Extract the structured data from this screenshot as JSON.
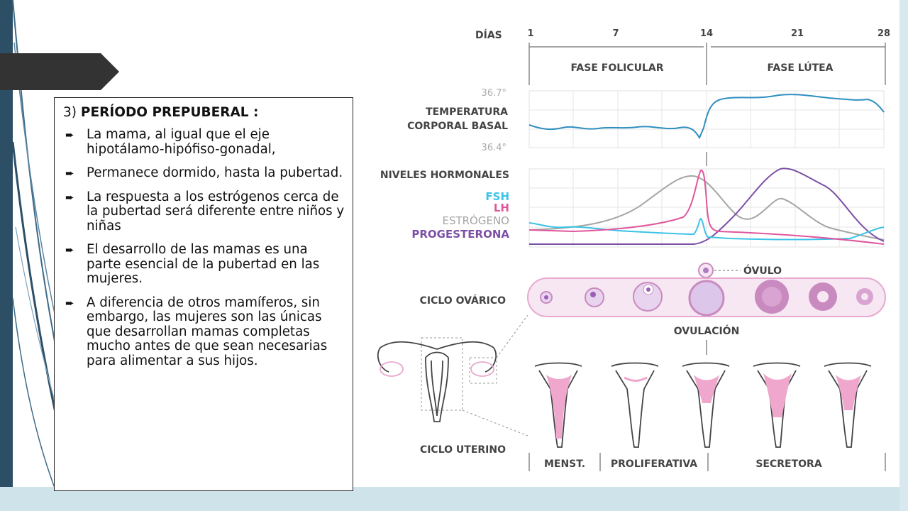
{
  "slide": {
    "heading_number": "3)",
    "heading_title": "PERÍODO PREPUBERAL :",
    "bullets": [
      "La mama, al igual que el eje hipotálamo-hipófiso-gonadal,",
      "Permanece dormido, hasta la pubertad.",
      "La respuesta a los estrógenos cerca de la pubertad será diferente entre niños y niñas",
      "El desarrollo de las mamas es una parte esencial de la pubertad en las mujeres.",
      "A diferencia de otros mamíferos, sin embargo, las mujeres son las únicas que desarrollan mamas completas mucho antes de que sean necesarias para alimentar a sus hijos."
    ],
    "bullet_icon": "arrow-right-icon"
  },
  "diagram": {
    "dias_label": "DÍAS",
    "day_ticks": [
      "1",
      "7",
      "14",
      "21",
      "28"
    ],
    "phase_follicular": "FASE FOLICULAR",
    "phase_luteal": "FASE LÚTEA",
    "temp_high": "36.7°",
    "temp_low": "36.4°",
    "temp_label_1": "TEMPERATURA",
    "temp_label_2": "CORPORAL BASAL",
    "hormones_label": "NIVELES HORMONALES",
    "fsh": "FSH",
    "lh": "LH",
    "estrogen": "ESTRÓGENO",
    "progesterone": "PROGESTERONA",
    "ovulo": "ÓVULO",
    "ovarian_cycle": "CICLO OVÁRICO",
    "ovulation": "OVULACIÓN",
    "uterine_cycle": "CICLO UTERINO",
    "menst": "MENST.",
    "proliferative": "PROLIFERATIVA",
    "secretory": "SECRETORA",
    "colors": {
      "temperature": "#2f8fc0",
      "fsh": "#3bc3e8",
      "lh": "#e0569c",
      "estrogen": "#a5a5a5",
      "progesterone": "#7b4fa5",
      "ovary_fill": "#f6e7f2",
      "ovary_border": "#e8a8cf",
      "follicle": "#c98ac0",
      "endometrium": "#f0a7cd"
    }
  }
}
